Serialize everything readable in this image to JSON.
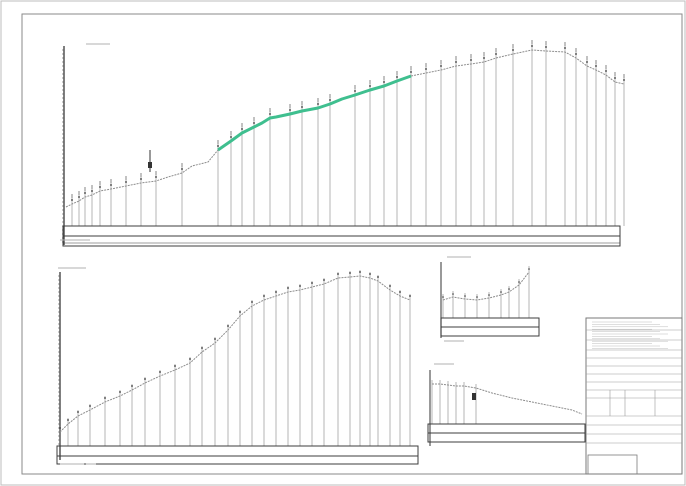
{
  "document": {
    "title": "",
    "colors": {
      "paper": "#ffffff",
      "frame": "#9a9a9a",
      "line": "#6d6d6d",
      "grid": "#d4d4d4",
      "highlight": "#3fbf8f",
      "table": "#3c3c3c"
    }
  },
  "profiles": {
    "main": {
      "caption": "",
      "scale_label": "",
      "ground": [
        [
          0,
          207
        ],
        [
          6,
          204
        ],
        [
          13,
          201
        ],
        [
          19,
          197
        ],
        [
          26,
          195
        ],
        [
          34,
          191
        ],
        [
          45,
          189
        ],
        [
          60,
          186
        ],
        [
          75,
          183
        ],
        [
          90,
          181
        ],
        [
          102,
          177
        ],
        [
          116,
          173
        ],
        [
          126,
          166
        ],
        [
          142,
          162
        ],
        [
          152,
          150
        ],
        [
          165,
          141
        ],
        [
          176,
          133
        ],
        [
          188,
          127
        ],
        [
          196,
          123
        ],
        [
          204,
          118
        ],
        [
          210,
          117
        ],
        [
          224,
          114
        ],
        [
          236,
          111
        ],
        [
          252,
          108
        ],
        [
          264,
          104
        ],
        [
          276,
          99
        ],
        [
          289,
          95
        ],
        [
          304,
          90
        ],
        [
          318,
          86
        ],
        [
          331,
          81
        ],
        [
          345,
          76
        ],
        [
          360,
          73
        ],
        [
          375,
          70
        ],
        [
          390,
          66
        ],
        [
          405,
          64
        ],
        [
          418,
          62
        ],
        [
          430,
          58
        ],
        [
          447,
          54
        ],
        [
          466,
          50
        ],
        [
          480,
          51
        ],
        [
          499,
          52
        ],
        [
          510,
          58
        ],
        [
          521,
          66
        ],
        [
          530,
          70
        ],
        [
          540,
          75
        ],
        [
          549,
          82
        ],
        [
          558,
          84
        ]
      ],
      "highlight_range": [
        152,
        345
      ]
    }
  }
}
